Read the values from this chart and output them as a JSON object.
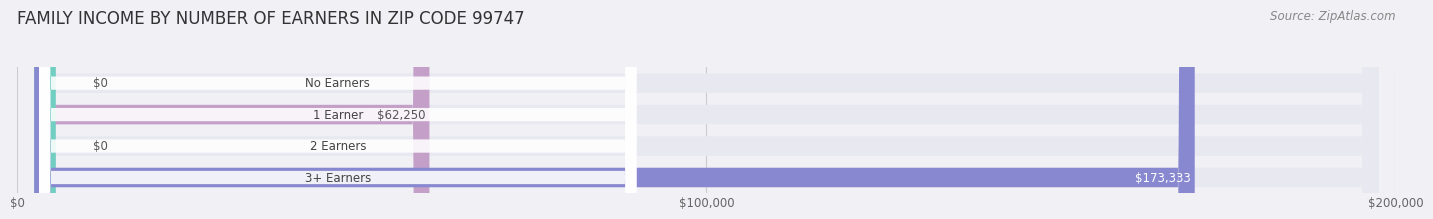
{
  "title": "FAMILY INCOME BY NUMBER OF EARNERS IN ZIP CODE 99747",
  "source": "Source: ZipAtlas.com",
  "categories": [
    "No Earners",
    "1 Earner",
    "2 Earners",
    "3+ Earners"
  ],
  "values": [
    0,
    62250,
    0,
    173333
  ],
  "xlim": [
    0,
    200000
  ],
  "xticks": [
    0,
    100000,
    200000
  ],
  "xtick_labels": [
    "$0",
    "$100,000",
    "$200,000"
  ],
  "bar_colors": [
    "#a8c4e0",
    "#c4a0c8",
    "#70cfc0",
    "#8888d0"
  ],
  "bar_bg_color": "#e8e8f0",
  "background_color": "#f0f0f5",
  "title_fontsize": 12,
  "source_fontsize": 8.5,
  "value_labels": [
    "$0",
    "$62,250",
    "$0",
    "$173,333"
  ],
  "label_colors": [
    "#555555",
    "#555555",
    "#555555",
    "#ffffff"
  ],
  "min_bar_value": 8000
}
